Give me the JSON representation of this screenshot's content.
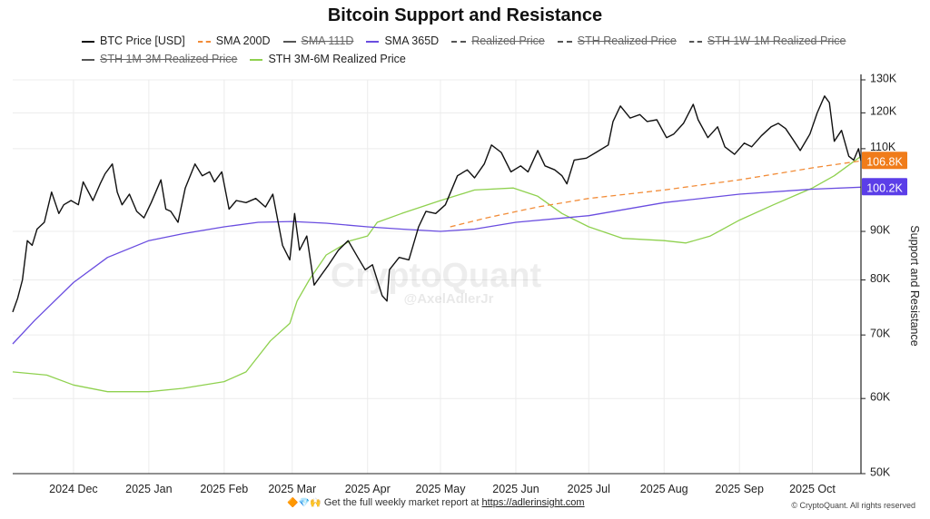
{
  "chart_data": {
    "type": "line",
    "title": "Bitcoin Support and Resistance",
    "ylabel": "Support and Resistance",
    "y_scale": "log",
    "ylim": [
      50000,
      130000
    ],
    "y_ticks": [
      {
        "value": 130000,
        "label": "130K"
      },
      {
        "value": 120000,
        "label": "120K"
      },
      {
        "value": 110000,
        "label": "110K"
      },
      {
        "value": 90000,
        "label": "90K"
      },
      {
        "value": 80000,
        "label": "80K"
      },
      {
        "value": 70000,
        "label": "70K"
      },
      {
        "value": 60000,
        "label": "60K"
      },
      {
        "value": 50000,
        "label": "50K"
      }
    ],
    "xlim": [
      "2024-11-06",
      "2025-10-21"
    ],
    "x_ticks": [
      {
        "date": "2024-12-01",
        "label": "2024 Dec"
      },
      {
        "date": "2025-01-01",
        "label": "2025 Jan"
      },
      {
        "date": "2025-02-01",
        "label": "2025 Feb"
      },
      {
        "date": "2025-03-01",
        "label": "2025 Mar"
      },
      {
        "date": "2025-04-01",
        "label": "2025 Apr"
      },
      {
        "date": "2025-05-01",
        "label": "2025 May"
      },
      {
        "date": "2025-06-01",
        "label": "2025 Jun"
      },
      {
        "date": "2025-07-01",
        "label": "2025 Jul"
      },
      {
        "date": "2025-08-01",
        "label": "2025 Aug"
      },
      {
        "date": "2025-09-01",
        "label": "2025 Sep"
      },
      {
        "date": "2025-10-01",
        "label": "2025 Oct"
      }
    ],
    "grid": true,
    "legend_position": "top",
    "series": [
      {
        "name": "BTC Price [USD]",
        "color": "#111111",
        "style": "solid",
        "visible": true,
        "points": [
          [
            "2024-11-06",
            74000
          ],
          [
            "2024-11-08",
            76500
          ],
          [
            "2024-11-10",
            80000
          ],
          [
            "2024-11-12",
            88000
          ],
          [
            "2024-11-14",
            87000
          ],
          [
            "2024-11-16",
            90500
          ],
          [
            "2024-11-19",
            92000
          ],
          [
            "2024-11-22",
            99000
          ],
          [
            "2024-11-25",
            94000
          ],
          [
            "2024-11-27",
            96000
          ],
          [
            "2024-11-30",
            97000
          ],
          [
            "2024-12-03",
            96000
          ],
          [
            "2024-12-05",
            101500
          ],
          [
            "2024-12-09",
            97000
          ],
          [
            "2024-12-12",
            101000
          ],
          [
            "2024-12-14",
            103500
          ],
          [
            "2024-12-17",
            106000
          ],
          [
            "2024-12-19",
            99000
          ],
          [
            "2024-12-21",
            96000
          ],
          [
            "2024-12-24",
            98500
          ],
          [
            "2024-12-27",
            94500
          ],
          [
            "2024-12-30",
            93000
          ],
          [
            "2025-01-02",
            96500
          ],
          [
            "2025-01-06",
            102000
          ],
          [
            "2025-01-08",
            95000
          ],
          [
            "2025-01-10",
            94500
          ],
          [
            "2025-01-13",
            92000
          ],
          [
            "2025-01-16",
            100000
          ],
          [
            "2025-01-20",
            106000
          ],
          [
            "2025-01-23",
            103000
          ],
          [
            "2025-01-26",
            104000
          ],
          [
            "2025-01-28",
            101500
          ],
          [
            "2025-01-31",
            104000
          ],
          [
            "2025-02-03",
            95000
          ],
          [
            "2025-02-06",
            97000
          ],
          [
            "2025-02-10",
            96500
          ],
          [
            "2025-02-14",
            97500
          ],
          [
            "2025-02-18",
            95500
          ],
          [
            "2025-02-21",
            98500
          ],
          [
            "2025-02-25",
            87000
          ],
          [
            "2025-02-28",
            84000
          ],
          [
            "2025-03-02",
            94000
          ],
          [
            "2025-03-04",
            86000
          ],
          [
            "2025-03-07",
            89000
          ],
          [
            "2025-03-10",
            79000
          ],
          [
            "2025-03-13",
            81000
          ],
          [
            "2025-03-16",
            83000
          ],
          [
            "2025-03-20",
            86000
          ],
          [
            "2025-03-24",
            88000
          ],
          [
            "2025-03-28",
            84500
          ],
          [
            "2025-03-31",
            82000
          ],
          [
            "2025-04-03",
            83000
          ],
          [
            "2025-04-07",
            77000
          ],
          [
            "2025-04-09",
            76000
          ],
          [
            "2025-04-10",
            82000
          ],
          [
            "2025-04-14",
            84500
          ],
          [
            "2025-04-18",
            84000
          ],
          [
            "2025-04-22",
            91000
          ],
          [
            "2025-04-25",
            94500
          ],
          [
            "2025-04-29",
            94000
          ],
          [
            "2025-05-03",
            96000
          ],
          [
            "2025-05-08",
            103000
          ],
          [
            "2025-05-12",
            104500
          ],
          [
            "2025-05-15",
            102500
          ],
          [
            "2025-05-19",
            106000
          ],
          [
            "2025-05-22",
            111000
          ],
          [
            "2025-05-26",
            109000
          ],
          [
            "2025-05-30",
            104000
          ],
          [
            "2025-06-03",
            105500
          ],
          [
            "2025-06-06",
            104000
          ],
          [
            "2025-06-10",
            109500
          ],
          [
            "2025-06-13",
            105500
          ],
          [
            "2025-06-17",
            104500
          ],
          [
            "2025-06-20",
            103000
          ],
          [
            "2025-06-22",
            101000
          ],
          [
            "2025-06-25",
            107000
          ],
          [
            "2025-06-30",
            107500
          ],
          [
            "2025-07-04",
            109000
          ],
          [
            "2025-07-09",
            111000
          ],
          [
            "2025-07-11",
            117500
          ],
          [
            "2025-07-14",
            122000
          ],
          [
            "2025-07-18",
            118500
          ],
          [
            "2025-07-22",
            119500
          ],
          [
            "2025-07-25",
            117500
          ],
          [
            "2025-07-29",
            118000
          ],
          [
            "2025-08-02",
            113000
          ],
          [
            "2025-08-05",
            114000
          ],
          [
            "2025-08-09",
            117000
          ],
          [
            "2025-08-13",
            122500
          ],
          [
            "2025-08-15",
            118000
          ],
          [
            "2025-08-19",
            113000
          ],
          [
            "2025-08-23",
            116000
          ],
          [
            "2025-08-26",
            110500
          ],
          [
            "2025-08-30",
            108500
          ],
          [
            "2025-09-03",
            111500
          ],
          [
            "2025-09-06",
            110500
          ],
          [
            "2025-09-10",
            113500
          ],
          [
            "2025-09-14",
            116000
          ],
          [
            "2025-09-17",
            117000
          ],
          [
            "2025-09-20",
            115500
          ],
          [
            "2025-09-23",
            112500
          ],
          [
            "2025-09-26",
            109500
          ],
          [
            "2025-09-30",
            114000
          ],
          [
            "2025-10-03",
            120000
          ],
          [
            "2025-10-06",
            125000
          ],
          [
            "2025-10-08",
            123000
          ],
          [
            "2025-10-10",
            112000
          ],
          [
            "2025-10-13",
            115000
          ],
          [
            "2025-10-16",
            108000
          ],
          [
            "2025-10-18",
            107000
          ],
          [
            "2025-10-20",
            110000
          ],
          [
            "2025-10-21",
            106800
          ]
        ]
      },
      {
        "name": "SMA 200D",
        "color": "#f28c38",
        "style": "dashed",
        "visible": true,
        "points": [
          [
            "2025-05-05",
            91000
          ],
          [
            "2025-05-20",
            93000
          ],
          [
            "2025-06-10",
            95500
          ],
          [
            "2025-07-01",
            97500
          ],
          [
            "2025-08-01",
            99500
          ],
          [
            "2025-09-01",
            102000
          ],
          [
            "2025-10-01",
            105000
          ],
          [
            "2025-10-21",
            106800
          ]
        ]
      },
      {
        "name": "SMA 111D",
        "color": "#777777",
        "style": "solid",
        "visible": false,
        "points": []
      },
      {
        "name": "SMA 365D",
        "color": "#6a4de0",
        "style": "solid",
        "visible": true,
        "points": [
          [
            "2024-11-06",
            68500
          ],
          [
            "2024-11-15",
            72500
          ],
          [
            "2024-12-01",
            79500
          ],
          [
            "2024-12-15",
            84500
          ],
          [
            "2025-01-01",
            88000
          ],
          [
            "2025-01-15",
            89500
          ],
          [
            "2025-02-01",
            91000
          ],
          [
            "2025-02-15",
            92000
          ],
          [
            "2025-03-01",
            92200
          ],
          [
            "2025-03-15",
            91800
          ],
          [
            "2025-04-01",
            91000
          ],
          [
            "2025-04-15",
            90500
          ],
          [
            "2025-05-01",
            90000
          ],
          [
            "2025-05-15",
            90500
          ],
          [
            "2025-06-01",
            92000
          ],
          [
            "2025-07-01",
            93500
          ],
          [
            "2025-08-01",
            96500
          ],
          [
            "2025-09-01",
            98500
          ],
          [
            "2025-10-01",
            99700
          ],
          [
            "2025-10-21",
            100200
          ]
        ]
      },
      {
        "name": "Realized Price",
        "color": "#777777",
        "style": "dashdot",
        "visible": false,
        "points": []
      },
      {
        "name": "STH Realized Price",
        "color": "#777777",
        "style": "dashdot",
        "visible": false,
        "points": []
      },
      {
        "name": "STH 1W-1M Realized Price",
        "color": "#777777",
        "style": "dashed",
        "visible": false,
        "points": []
      },
      {
        "name": "STH 1M-3M Realized Price",
        "color": "#777777",
        "style": "solid",
        "visible": false,
        "points": []
      },
      {
        "name": "STH 3M-6M Realized Price",
        "color": "#8fd14f",
        "style": "solid",
        "visible": true,
        "points": [
          [
            "2024-11-06",
            64000
          ],
          [
            "2024-11-20",
            63500
          ],
          [
            "2024-12-01",
            62000
          ],
          [
            "2024-12-15",
            61000
          ],
          [
            "2025-01-01",
            61000
          ],
          [
            "2025-01-15",
            61500
          ],
          [
            "2025-02-01",
            62500
          ],
          [
            "2025-02-10",
            64000
          ],
          [
            "2025-02-20",
            69000
          ],
          [
            "2025-02-28",
            72000
          ],
          [
            "2025-03-03",
            76000
          ],
          [
            "2025-03-08",
            80000
          ],
          [
            "2025-03-15",
            85000
          ],
          [
            "2025-03-25",
            88000
          ],
          [
            "2025-04-01",
            89000
          ],
          [
            "2025-04-05",
            92000
          ],
          [
            "2025-04-15",
            94000
          ],
          [
            "2025-05-01",
            97000
          ],
          [
            "2025-05-15",
            99500
          ],
          [
            "2025-05-31",
            100000
          ],
          [
            "2025-06-10",
            98000
          ],
          [
            "2025-06-20",
            94000
          ],
          [
            "2025-07-01",
            91000
          ],
          [
            "2025-07-15",
            88500
          ],
          [
            "2025-08-01",
            88000
          ],
          [
            "2025-08-10",
            87500
          ],
          [
            "2025-08-20",
            89000
          ],
          [
            "2025-09-01",
            92500
          ],
          [
            "2025-09-15",
            96000
          ],
          [
            "2025-10-01",
            100000
          ],
          [
            "2025-10-10",
            103000
          ],
          [
            "2025-10-21",
            108000
          ]
        ]
      }
    ],
    "price_tags": [
      {
        "label": "106.8K",
        "value": 106800,
        "color": "#f07c1a"
      },
      {
        "label": "100.2K",
        "value": 100200,
        "color": "#5b3ee8"
      }
    ],
    "watermark": {
      "main": "CryptoQuant",
      "sub": "@AxelAdlerJr"
    }
  },
  "footer": {
    "emojis": "🔶💎🙌",
    "text": "Get the full weekly market report at ",
    "link_text": "https://adlerinsight.com",
    "copyright": "© CryptoQuant. All rights reserved"
  }
}
